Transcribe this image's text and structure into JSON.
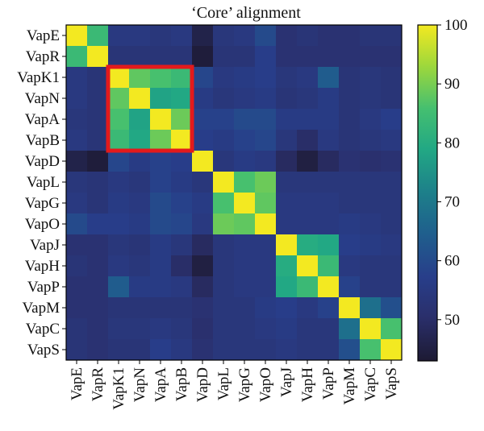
{
  "chart_data": {
    "type": "heatmap",
    "title": "‘Core’ alignment",
    "categories": [
      "VapE",
      "VapR",
      "VapK1",
      "VapN",
      "VapA",
      "VapB",
      "VapD",
      "VapL",
      "VapG",
      "VapO",
      "VapJ",
      "VapH",
      "VapP",
      "VapM",
      "VapC",
      "VapS"
    ],
    "matrix": [
      [
        100,
        84,
        55,
        55,
        54,
        55,
        46,
        54,
        55,
        60,
        52,
        53,
        52,
        52,
        53,
        53
      ],
      [
        84,
        100,
        53,
        53,
        53,
        53,
        44,
        53,
        53,
        57,
        52,
        52,
        52,
        52,
        52,
        52
      ],
      [
        55,
        53,
        100,
        88,
        86,
        84,
        59,
        55,
        56,
        57,
        54,
        55,
        64,
        53,
        54,
        53
      ],
      [
        55,
        53,
        88,
        100,
        78,
        79,
        56,
        54,
        55,
        56,
        53,
        54,
        56,
        53,
        54,
        53
      ],
      [
        54,
        53,
        86,
        78,
        100,
        89,
        58,
        58,
        60,
        60,
        56,
        56,
        56,
        53,
        55,
        57
      ],
      [
        55,
        53,
        84,
        79,
        89,
        100,
        57,
        56,
        58,
        59,
        54,
        50,
        55,
        53,
        54,
        55
      ],
      [
        46,
        44,
        59,
        56,
        58,
        57,
        100,
        54,
        56,
        55,
        49,
        45,
        49,
        52,
        51,
        52
      ],
      [
        54,
        53,
        55,
        54,
        58,
        56,
        54,
        100,
        86,
        89,
        54,
        54,
        54,
        54,
        54,
        54
      ],
      [
        55,
        53,
        56,
        55,
        60,
        58,
        56,
        86,
        100,
        88,
        55,
        55,
        55,
        54,
        54,
        54
      ],
      [
        60,
        57,
        57,
        56,
        60,
        59,
        55,
        89,
        88,
        100,
        55,
        55,
        55,
        56,
        55,
        54
      ],
      [
        52,
        52,
        54,
        53,
        56,
        54,
        49,
        54,
        55,
        55,
        100,
        80,
        79,
        57,
        56,
        55
      ],
      [
        53,
        52,
        55,
        54,
        56,
        50,
        45,
        54,
        55,
        55,
        80,
        100,
        84,
        55,
        54,
        54
      ],
      [
        52,
        52,
        64,
        56,
        56,
        55,
        49,
        54,
        55,
        55,
        79,
        84,
        100,
        58,
        54,
        54
      ],
      [
        52,
        52,
        53,
        53,
        53,
        53,
        52,
        54,
        54,
        56,
        57,
        55,
        58,
        100,
        68,
        61
      ],
      [
        53,
        52,
        54,
        54,
        55,
        54,
        51,
        54,
        54,
        55,
        56,
        54,
        54,
        68,
        100,
        86
      ],
      [
        53,
        52,
        53,
        53,
        57,
        55,
        52,
        54,
        54,
        54,
        55,
        54,
        54,
        61,
        86,
        100
      ]
    ],
    "colorbar": {
      "min": 43,
      "max": 100,
      "ticks": [
        50,
        60,
        70,
        80,
        90,
        100
      ]
    },
    "colormap": "viridis",
    "highlight": {
      "rows": [
        "VapK1",
        "VapB"
      ],
      "cols": [
        "VapK1",
        "VapB"
      ],
      "color": "#e31a1c"
    }
  }
}
